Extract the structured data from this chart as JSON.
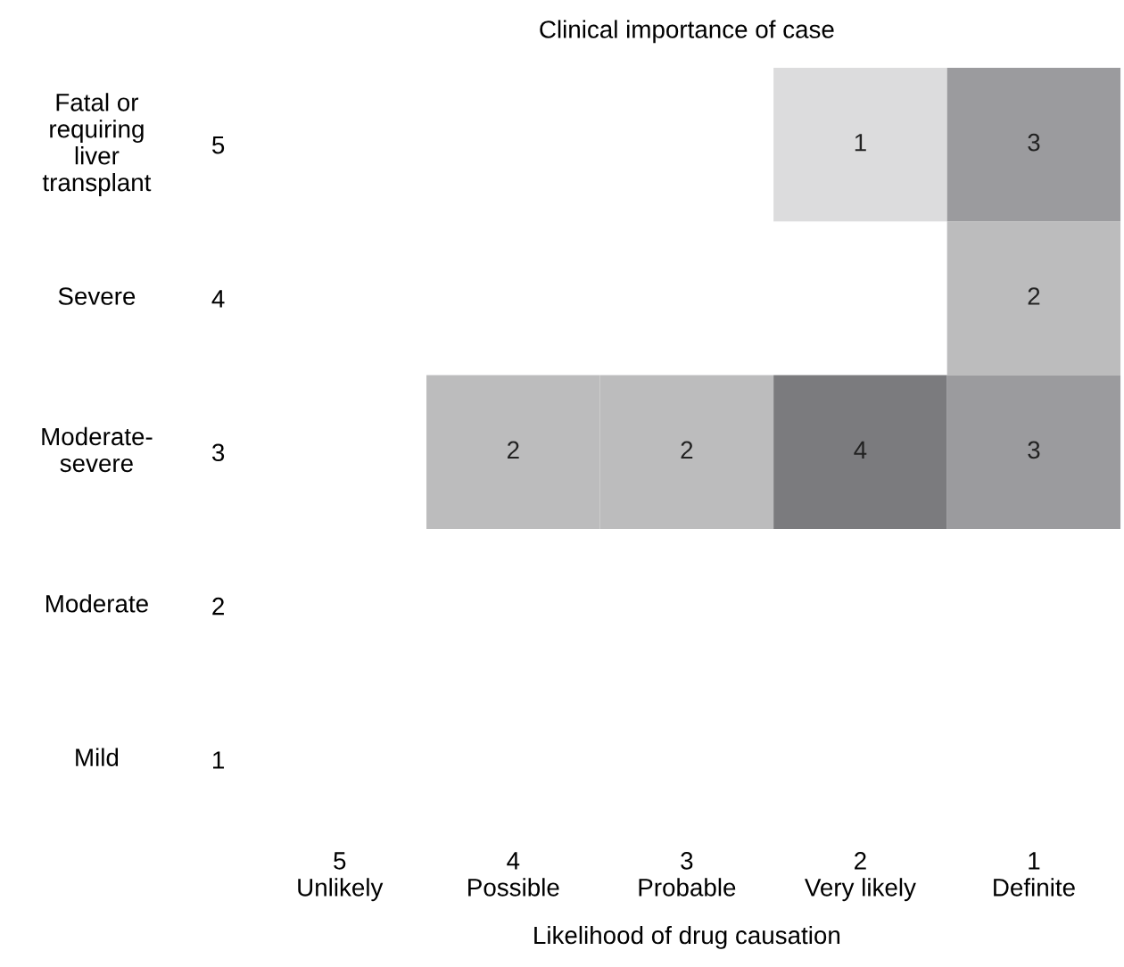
{
  "chart_data": {
    "type": "heatmap",
    "title": "Clinical importance of case",
    "xlabel": "Likelihood of drug causation",
    "categories": [
      "5\nUnlikely",
      "4\nPossible",
      "3\nProbable",
      "2\nVery likely",
      "1\nDefinite"
    ],
    "y_categories": [
      "Fatal or\nrequiring\nliver\ntransplant",
      "Severe",
      "Moderate-\nsevere",
      "Moderate",
      "Mild"
    ],
    "y2_categories": [
      "5",
      "4",
      "3",
      "2",
      "1"
    ],
    "cells": [
      [
        null,
        null,
        null,
        1,
        3
      ],
      [
        null,
        null,
        null,
        null,
        2
      ],
      [
        null,
        2,
        2,
        4,
        3
      ],
      [
        null,
        null,
        null,
        null,
        null
      ],
      [
        null,
        null,
        null,
        null,
        null
      ]
    ],
    "data_labels": true
  }
}
